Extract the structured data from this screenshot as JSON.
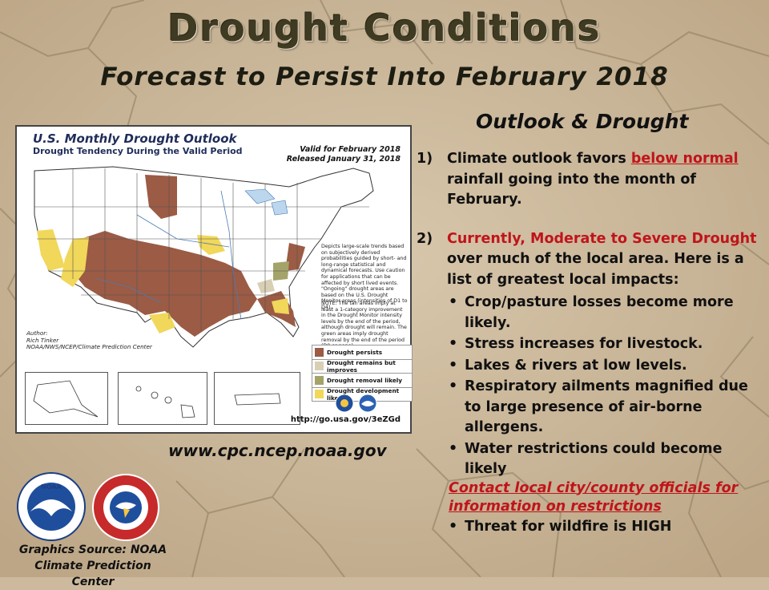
{
  "slide": {
    "title": "Drought  Conditions",
    "subtitle": "Forecast to Persist Into February 2018",
    "section_heading": "Outlook & Drought",
    "website": "www.cpc.ncep.noaa.gov",
    "source_line1": "Graphics Source: NOAA",
    "source_line2": "Climate Prediction Center"
  },
  "points": {
    "p1": {
      "num": "1)",
      "text_a": "Climate outlook favors ",
      "highlight": "below normal",
      "text_b": " rainfall going into the month of February."
    },
    "p2": {
      "num": "2)",
      "highlight": "Currently, Moderate to Severe Drought",
      "text_b": " over much of the local area. Here is a list of greatest local impacts:"
    },
    "bullet_char": "•",
    "bullets": [
      "Crop/pasture losses become more likely.",
      "Stress increases for livestock.",
      "Lakes & rivers at low levels.",
      "Respiratory ailments magnified due to large presence of air-borne allergens.",
      "Water restrictions could become likely"
    ],
    "contact_link": "Contact local city/county officials for information on restrictions",
    "last_bullet": "Threat for wildfire is HIGH"
  },
  "map": {
    "title": "U.S. Monthly Drought Outlook",
    "subtitle": "Drought Tendency During the Valid Period",
    "valid": "Valid for February 2018",
    "released": "Released January 31, 2018",
    "note1": "Depicts large-scale trends based on subjectively derived probabilities guided by short- and long-range statistical and dynamical forecasts. Use caution for applications that can be affected by short lived events. \"Ongoing\" drought areas are based on the U.S. Drought Monitor areas (intensities of D1 to D4).",
    "note2": "NOTE: The tan areas imply at least a 1-category improvement in the Drought Monitor intensity levels by the end of the period, although drought will remain. The green areas imply drought removal by the end of the period (D0 or none).",
    "author_label": "Author:",
    "author_name": "Rich Tinker",
    "author_org": "NOAA/NWS/NCEP/Climate Prediction Center",
    "legend": [
      {
        "label": "Drought persists",
        "color": "#9b5b45"
      },
      {
        "label": "Drought remains but improves",
        "color": "#d9cfb4"
      },
      {
        "label": "Drought removal likely",
        "color": "#a4a36a"
      },
      {
        "label": "Drought development likely",
        "color": "#f1d75a"
      }
    ],
    "url": "http://go.usa.gov/3eZGd"
  },
  "logos": {
    "noaa_text": "NOAA",
    "nws_text": "NATIONAL WEATHER SERVICE"
  },
  "colors": {
    "red": "#c0141a",
    "title": "#3f3a22",
    "drought": "#9b5b45",
    "development": "#f1d75a"
  }
}
